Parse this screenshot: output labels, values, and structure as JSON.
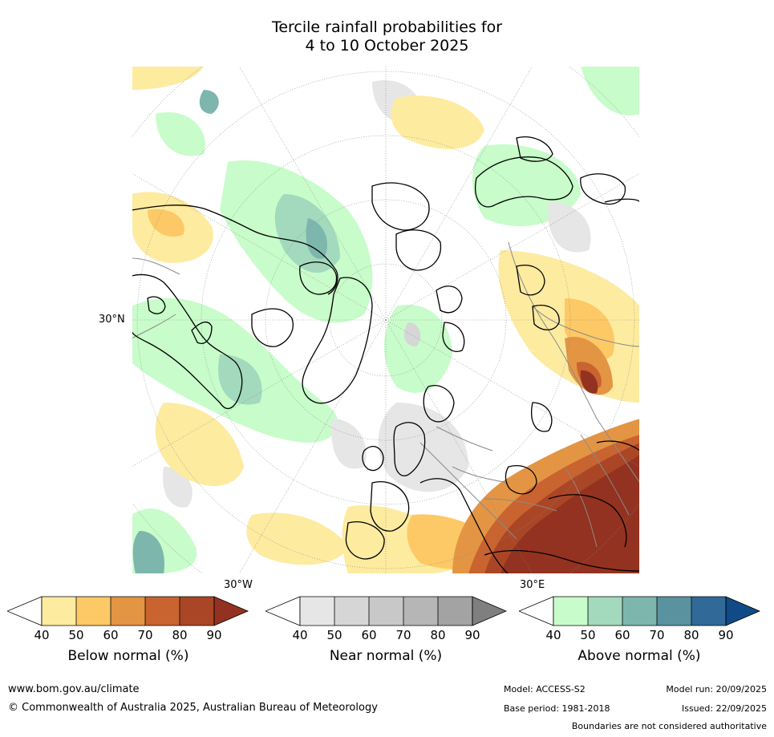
{
  "title": {
    "line1": "Tercile rainfall probabilities for",
    "line2": "4 to 10 October 2025"
  },
  "map": {
    "lat_label": "30°N",
    "lon_label_left": "30°W",
    "lon_label_right": "30°E"
  },
  "colorbars": [
    {
      "name": "Below normal (%)",
      "ticks": [
        "40",
        "50",
        "60",
        "70",
        "80",
        "90"
      ],
      "colors": [
        "#ffffff",
        "#fdeba0",
        "#fdc866",
        "#e39544",
        "#c9632f",
        "#aa4626",
        "#933220"
      ]
    },
    {
      "name": "Near normal (%)",
      "ticks": [
        "40",
        "50",
        "60",
        "70",
        "80",
        "90"
      ],
      "colors": [
        "#ffffff",
        "#e6e6e6",
        "#d6d6d6",
        "#c8c8c8",
        "#b6b6b6",
        "#a3a3a3",
        "#7f7f7f"
      ]
    },
    {
      "name": "Above normal (%)",
      "ticks": [
        "40",
        "50",
        "60",
        "70",
        "80",
        "90"
      ],
      "colors": [
        "#ffffff",
        "#c8fcca",
        "#a3d9bc",
        "#7db6ad",
        "#5a929f",
        "#316a99",
        "#104a87"
      ]
    }
  ],
  "footer": {
    "url": "www.bom.gov.au/climate",
    "copyright": "© Commonwealth of Australia 2025, Australian Bureau of Meteorology",
    "model": "Model: ACCESS-S2",
    "base_period": "Base period: 1981-2018",
    "model_run": "Model run: 20/09/2025",
    "issued": "Issued: 22/09/2025",
    "disclaimer": "Boundaries are not considered authoritative"
  }
}
